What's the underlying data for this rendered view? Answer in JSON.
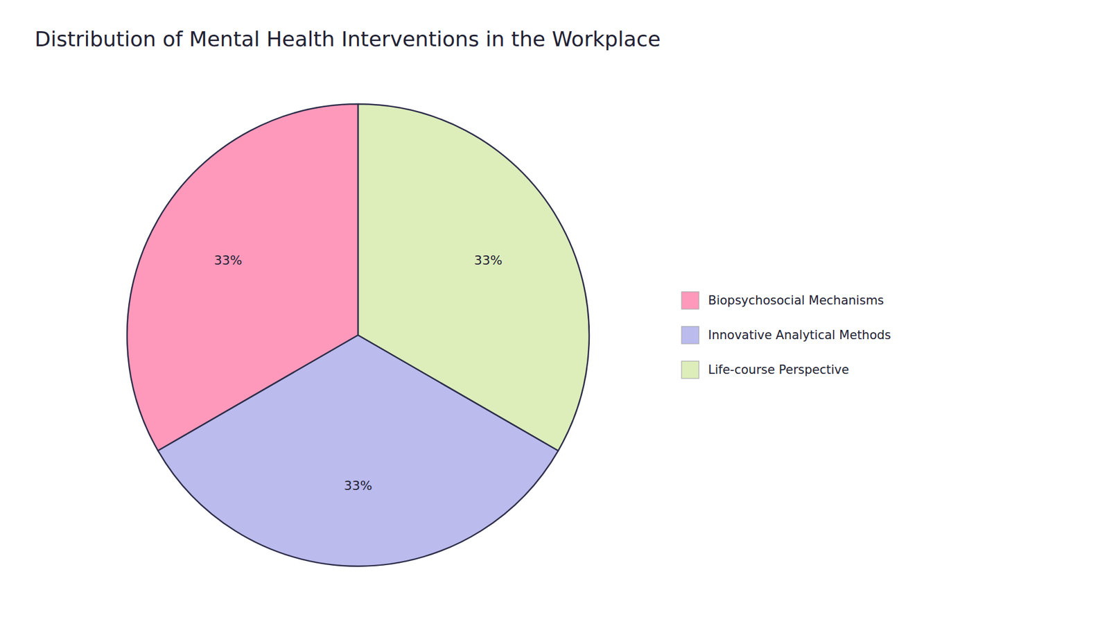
{
  "chart_data": {
    "type": "pie",
    "title": "Distribution of Mental Health Interventions in the Workplace",
    "categories": [
      "Biopsychosocial Mechanisms",
      "Innovative Analytical Methods",
      "Life-course Perspective"
    ],
    "values": [
      33,
      33,
      33
    ],
    "value_labels": [
      "33%",
      "33%",
      "33%"
    ],
    "colors": [
      "#FF99BB",
      "#BBBBEE",
      "#DDEEBB"
    ],
    "data_labels": true,
    "legend": "right"
  }
}
